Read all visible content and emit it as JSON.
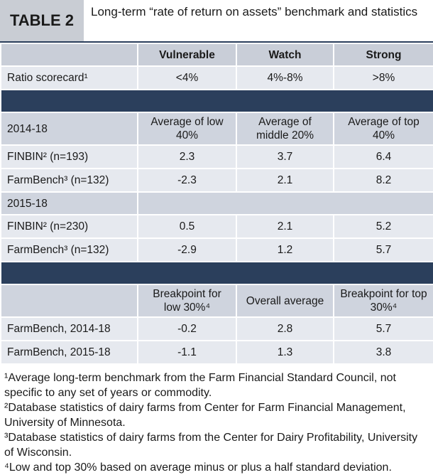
{
  "header": {
    "label": "TABLE 2",
    "title": "Long-term “rate of return on assets” benchmark and statistics"
  },
  "table": {
    "columns": [
      "Vulnerable",
      "Watch",
      "Strong"
    ],
    "scorecard": {
      "label": "Ratio scorecard¹",
      "values": [
        "<4%",
        "4%-8%",
        ">8%"
      ]
    },
    "sections": [
      {
        "period": "2014-18",
        "columns": [
          "Average of low 40%",
          "Average of middle 20%",
          "Average of top 40%"
        ],
        "rows": [
          {
            "label": "FINBIN² (n=193)",
            "values": [
              2.3,
              3.7,
              6.4
            ]
          },
          {
            "label": "FarmBench³ (n=132)",
            "values": [
              -2.3,
              2.1,
              8.2
            ]
          }
        ]
      },
      {
        "period": "2015-18",
        "rows": [
          {
            "label": "FINBIN² (n=230)",
            "values": [
              0.5,
              2.1,
              5.2
            ]
          },
          {
            "label": "FarmBench³ (n=132)",
            "values": [
              -2.9,
              1.2,
              5.7
            ]
          }
        ]
      },
      {
        "columns": [
          "Breakpoint for low 30%⁴",
          "Overall average",
          "Breakpoint for top 30%⁴"
        ],
        "rows": [
          {
            "label": "FarmBench, 2014-18",
            "values": [
              -0.2,
              2.8,
              5.7
            ]
          },
          {
            "label": "FarmBench, 2015-18",
            "values": [
              -1.1,
              1.3,
              3.8
            ]
          }
        ]
      }
    ]
  },
  "footnotes": [
    "¹Average long-term benchmark from the Farm Financial Standard Council, not specific to any set of years or commodity.",
    "²Database statistics of dairy farms from Center for Farm Financial Management, University of Minnesota.",
    "³Database statistics of dairy farms from the Center for Dairy Profitability, University of Wisconsin.",
    "⁴Low and top 30% based on average minus or plus a half standard deviation."
  ]
}
